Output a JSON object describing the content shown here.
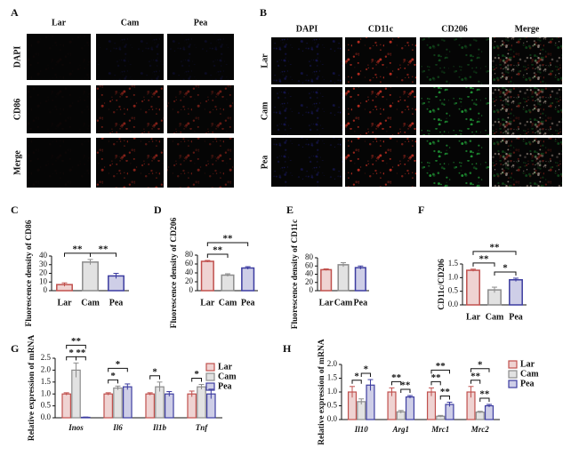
{
  "panel_a": {
    "label": "A",
    "columns": [
      "Lar",
      "Cam",
      "Pea"
    ],
    "rows": [
      "DAPI",
      "CD86",
      "Merge"
    ],
    "row_colors": [
      "#2a2ab8",
      "#d02020",
      "#111111"
    ]
  },
  "panel_b": {
    "label": "B",
    "columns": [
      "DAPI",
      "CD11c",
      "CD206",
      "Merge"
    ],
    "column_colors": [
      "#2a2ab8",
      "#d02020",
      "#1a9a1a",
      "#111111"
    ],
    "rows": [
      "Lar",
      "Cam",
      "Pea"
    ]
  },
  "chart_data": [
    {
      "panel": "C",
      "type": "bar",
      "ylabel": "Fluorescence density of CD86",
      "categories": [
        "Lar",
        "Cam",
        "Pea"
      ],
      "values": [
        7,
        33,
        17
      ],
      "errors": [
        2,
        3,
        3
      ],
      "colors": [
        "#c0504d",
        "#8c8c8c",
        "#3c3ca0"
      ],
      "ylim": [
        0,
        40
      ],
      "yticks": [
        0,
        10,
        20,
        30,
        40
      ],
      "significance": [
        {
          "pair": [
            0,
            1
          ],
          "label": "**"
        },
        {
          "pair": [
            1,
            2
          ],
          "label": "**"
        }
      ]
    },
    {
      "panel": "D",
      "type": "bar",
      "ylabel": "Fluorescence density of CD206",
      "categories": [
        "Lar",
        "Cam",
        "Pea"
      ],
      "values": [
        66,
        35,
        51
      ],
      "errors": [
        2,
        3,
        3
      ],
      "colors": [
        "#c0504d",
        "#8c8c8c",
        "#3c3ca0"
      ],
      "ylim": [
        0,
        80
      ],
      "yticks": [
        0,
        20,
        40,
        60,
        80
      ],
      "significance": [
        {
          "pair": [
            0,
            1
          ],
          "label": "**"
        },
        {
          "pair": [
            0,
            2
          ],
          "label": "**"
        }
      ]
    },
    {
      "panel": "E",
      "type": "bar",
      "ylabel": "Fluorescence density of CD11c",
      "categories": [
        "Lar",
        "Cam",
        "Pea"
      ],
      "values": [
        51,
        63,
        56
      ],
      "errors": [
        2,
        5,
        4
      ],
      "colors": [
        "#c0504d",
        "#8c8c8c",
        "#3c3ca0"
      ],
      "ylim": [
        0,
        80
      ],
      "yticks": [
        0,
        20,
        40,
        60,
        80
      ],
      "significance": []
    },
    {
      "panel": "F",
      "type": "bar",
      "ylabel": "CD11c/CD206",
      "categories": [
        "Lar",
        "Cam",
        "Pea"
      ],
      "values": [
        1.27,
        0.55,
        0.92
      ],
      "errors": [
        0.04,
        0.1,
        0.06
      ],
      "colors": [
        "#c0504d",
        "#8c8c8c",
        "#3c3ca0"
      ],
      "ylim": [
        0,
        1.5
      ],
      "yticks": [
        {
          "value": 0,
          "label": "0.0"
        },
        0.5,
        {
          "value": 1,
          "label": "1.0"
        },
        1.5
      ],
      "significance": [
        {
          "pair": [
            0,
            1
          ],
          "label": "**"
        },
        {
          "pair": [
            1,
            2
          ],
          "label": "*"
        },
        {
          "pair": [
            0,
            2
          ],
          "label": "**"
        }
      ]
    },
    {
      "panel": "G",
      "type": "grouped_bar",
      "ylabel": "Relative expression of mRNA",
      "categories": [
        "Inos",
        "Il6",
        "Il1b",
        "Tnf"
      ],
      "series": [
        {
          "name": "Lar",
          "color": "#c0504d",
          "values": [
            1,
            1,
            1,
            1
          ],
          "errors": [
            0.05,
            0.05,
            0.05,
            0.12
          ]
        },
        {
          "name": "Cam",
          "color": "#8c8c8c",
          "values": [
            2.0,
            1.25,
            1.3,
            1.3
          ],
          "errors": [
            0.3,
            0.08,
            0.2,
            0.1
          ]
        },
        {
          "name": "Pea",
          "color": "#3c3ca0",
          "values": [
            0.02,
            1.3,
            1.0,
            1.0
          ],
          "errors": [
            0.01,
            0.12,
            0.1,
            0.2
          ]
        }
      ],
      "ylim": [
        0,
        2.5
      ],
      "yticks": [
        {
          "value": 0,
          "label": "0.0"
        },
        0.5,
        {
          "value": 1,
          "label": "1.0"
        },
        1.5,
        {
          "value": 2,
          "label": "2.0"
        },
        2.5
      ],
      "significance": [
        {
          "group": 0,
          "pair": [
            0,
            1
          ],
          "label": "*"
        },
        {
          "group": 0,
          "pair": [
            1,
            2
          ],
          "label": "**"
        },
        {
          "group": 0,
          "pair": [
            0,
            2
          ],
          "label": "**"
        },
        {
          "group": 1,
          "pair": [
            0,
            1
          ],
          "label": "*"
        },
        {
          "group": 1,
          "pair": [
            0,
            2
          ],
          "label": "*"
        },
        {
          "group": 2,
          "pair": [
            0,
            1
          ],
          "label": "*"
        },
        {
          "group": 3,
          "pair": [
            0,
            1
          ],
          "label": "*"
        }
      ]
    },
    {
      "panel": "H",
      "type": "grouped_bar",
      "ylabel": "Relative expression of mRNA",
      "categories": [
        "Il10",
        "Arg1",
        "Mrc1",
        "Mrc2"
      ],
      "series": [
        {
          "name": "Lar",
          "color": "#c0504d",
          "values": [
            1,
            1,
            1,
            1
          ],
          "errors": [
            0.2,
            0.15,
            0.15,
            0.2
          ]
        },
        {
          "name": "Cam",
          "color": "#8c8c8c",
          "values": [
            0.65,
            0.28,
            0.12,
            0.27
          ],
          "errors": [
            0.1,
            0.05,
            0.03,
            0.03
          ]
        },
        {
          "name": "Pea",
          "color": "#3c3ca0",
          "values": [
            1.25,
            0.82,
            0.55,
            0.5
          ],
          "errors": [
            0.2,
            0.05,
            0.08,
            0.05
          ]
        }
      ],
      "ylim": [
        0,
        2
      ],
      "yticks": [
        {
          "value": 0,
          "label": "0.0"
        },
        0.5,
        {
          "value": 1,
          "label": "1.0"
        },
        1.5,
        {
          "value": 2,
          "label": "2.0"
        }
      ],
      "significance": [
        {
          "group": 0,
          "pair": [
            0,
            1
          ],
          "label": "*"
        },
        {
          "group": 0,
          "pair": [
            1,
            2
          ],
          "label": "*"
        },
        {
          "group": 1,
          "pair": [
            0,
            1
          ],
          "label": "**"
        },
        {
          "group": 1,
          "pair": [
            1,
            2
          ],
          "label": "**"
        },
        {
          "group": 2,
          "pair": [
            0,
            1
          ],
          "label": "**"
        },
        {
          "group": 2,
          "pair": [
            1,
            2
          ],
          "label": "**"
        },
        {
          "group": 2,
          "pair": [
            0,
            2
          ],
          "label": "**"
        },
        {
          "group": 3,
          "pair": [
            0,
            1
          ],
          "label": "**"
        },
        {
          "group": 3,
          "pair": [
            1,
            2
          ],
          "label": "**"
        },
        {
          "group": 3,
          "pair": [
            0,
            2
          ],
          "label": "*"
        }
      ]
    }
  ]
}
